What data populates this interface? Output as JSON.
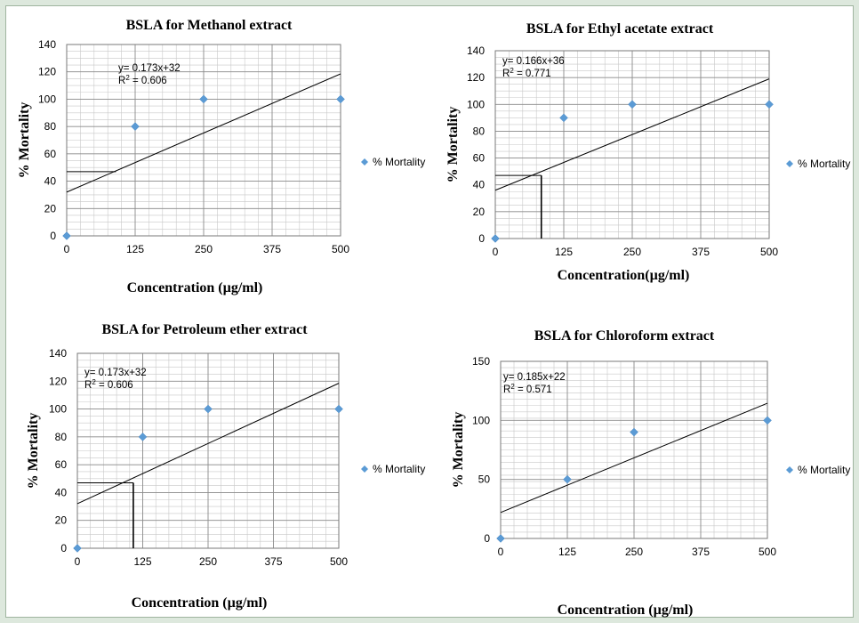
{
  "legend_label": "% Mortality",
  "marker_color": "#5b9bd5",
  "chart_data": [
    {
      "type": "scatter",
      "title": "BSLA for Methanol extract",
      "xlabel": "Concentration (µg/ml)",
      "ylabel": "% Mortality",
      "x": [
        0,
        125,
        250,
        500
      ],
      "y": [
        0,
        80,
        100,
        100
      ],
      "xlim": [
        0,
        500
      ],
      "ylim": [
        0,
        140
      ],
      "xticks": [
        0,
        125,
        250,
        375,
        500
      ],
      "yticks": [
        0,
        20,
        40,
        60,
        80,
        100,
        120,
        140
      ],
      "trendline": {
        "slope": 0.173,
        "intercept": 32
      },
      "equation_text": "y= 0.173x+32",
      "r2_prefix": "R",
      "r2_value": " = 0.606",
      "lc50_guide": {
        "y": 47,
        "x": 90,
        "vertical": false
      },
      "legend": "right",
      "grid": true
    },
    {
      "type": "scatter",
      "title": "BSLA for Ethyl acetate extract",
      "xlabel": "Concentration(µg/ml)",
      "ylabel": "% Mortality",
      "x": [
        0,
        125,
        250,
        500
      ],
      "y": [
        0,
        90,
        100,
        100
      ],
      "xlim": [
        0,
        500
      ],
      "ylim": [
        0,
        140
      ],
      "xticks": [
        0,
        125,
        250,
        375,
        500
      ],
      "yticks": [
        0,
        20,
        40,
        60,
        80,
        100,
        120,
        140
      ],
      "trendline": {
        "slope": 0.166,
        "intercept": 36
      },
      "equation_text": "y= 0.166x+36",
      "r2_prefix": "R",
      "r2_value": " = 0.771",
      "lc50_guide": {
        "y": 47,
        "x": 84,
        "vertical": true
      },
      "legend": "right",
      "grid": true
    },
    {
      "type": "scatter",
      "title": "BSLA for Petroleum ether extract",
      "xlabel": "Concentration (µg/ml)",
      "ylabel": "% Mortality",
      "x": [
        0,
        125,
        250,
        500
      ],
      "y": [
        0,
        80,
        100,
        100
      ],
      "xlim": [
        0,
        500
      ],
      "ylim": [
        0,
        140
      ],
      "xticks": [
        0,
        125,
        250,
        375,
        500
      ],
      "yticks": [
        0,
        20,
        40,
        60,
        80,
        100,
        120,
        140
      ],
      "trendline": {
        "slope": 0.173,
        "intercept": 32
      },
      "equation_text": "y= 0.173x+32",
      "r2_prefix": "R",
      "r2_value": " = 0.606",
      "lc50_guide": {
        "y": 47,
        "x": 107,
        "vertical": true
      },
      "legend": "right",
      "grid": true
    },
    {
      "type": "scatter",
      "title": "BSLA for Chloroform extract",
      "xlabel": "Concentration (µg/ml)",
      "ylabel": "% Mortality",
      "x": [
        0,
        125,
        250,
        500
      ],
      "y": [
        0,
        50,
        90,
        100
      ],
      "xlim": [
        0,
        500
      ],
      "ylim": [
        0,
        150
      ],
      "xticks": [
        0,
        125,
        250,
        375,
        500
      ],
      "yticks": [
        0,
        50,
        100,
        150
      ],
      "trendline": {
        "slope": 0.185,
        "intercept": 22
      },
      "equation_text": "y= 0.185x+22",
      "r2_prefix": "R",
      "r2_value": " = 0.571",
      "lc50_guide": null,
      "legend": "right",
      "grid": true
    }
  ]
}
